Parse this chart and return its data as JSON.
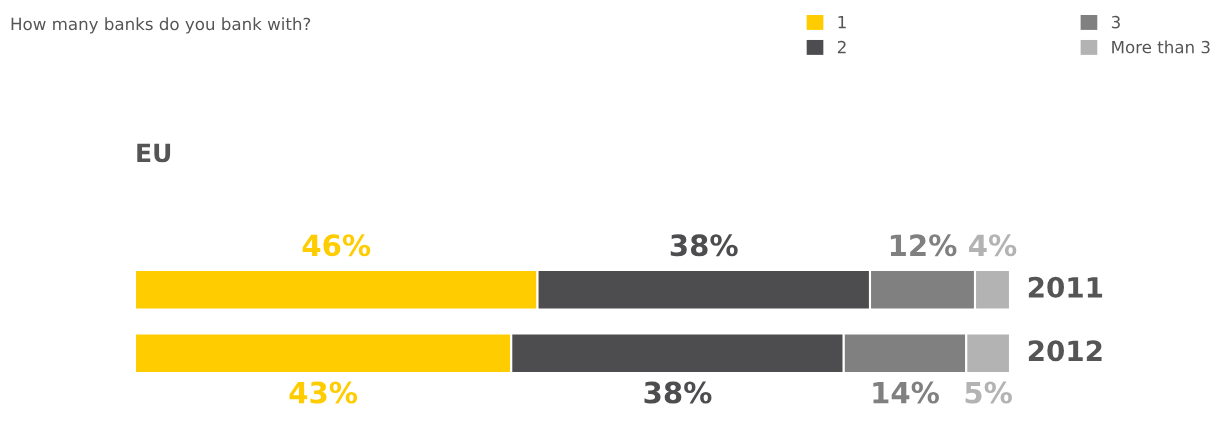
{
  "chart_data": {
    "type": "bar",
    "orientation": "horizontal",
    "stacked": true,
    "title": "How many banks do you bank with?",
    "subtitle": "EU",
    "categories": [
      "2011",
      "2012"
    ],
    "legend": "top right",
    "series": [
      {
        "name": "1",
        "color": "#ffcc00",
        "values": [
          46,
          43
        ],
        "value_labels": [
          "46%",
          "43%"
        ]
      },
      {
        "name": "2",
        "color": "#4d4d4f",
        "values": [
          38,
          38
        ],
        "value_labels": [
          "38%",
          "38%"
        ]
      },
      {
        "name": "3",
        "color": "#808080",
        "values": [
          12,
          14
        ],
        "value_labels": [
          "12%",
          "14%"
        ]
      },
      {
        "name": "More than 3",
        "color": "#b3b3b3",
        "values": [
          4,
          5
        ],
        "value_labels": [
          "4%",
          "5%"
        ]
      }
    ]
  }
}
